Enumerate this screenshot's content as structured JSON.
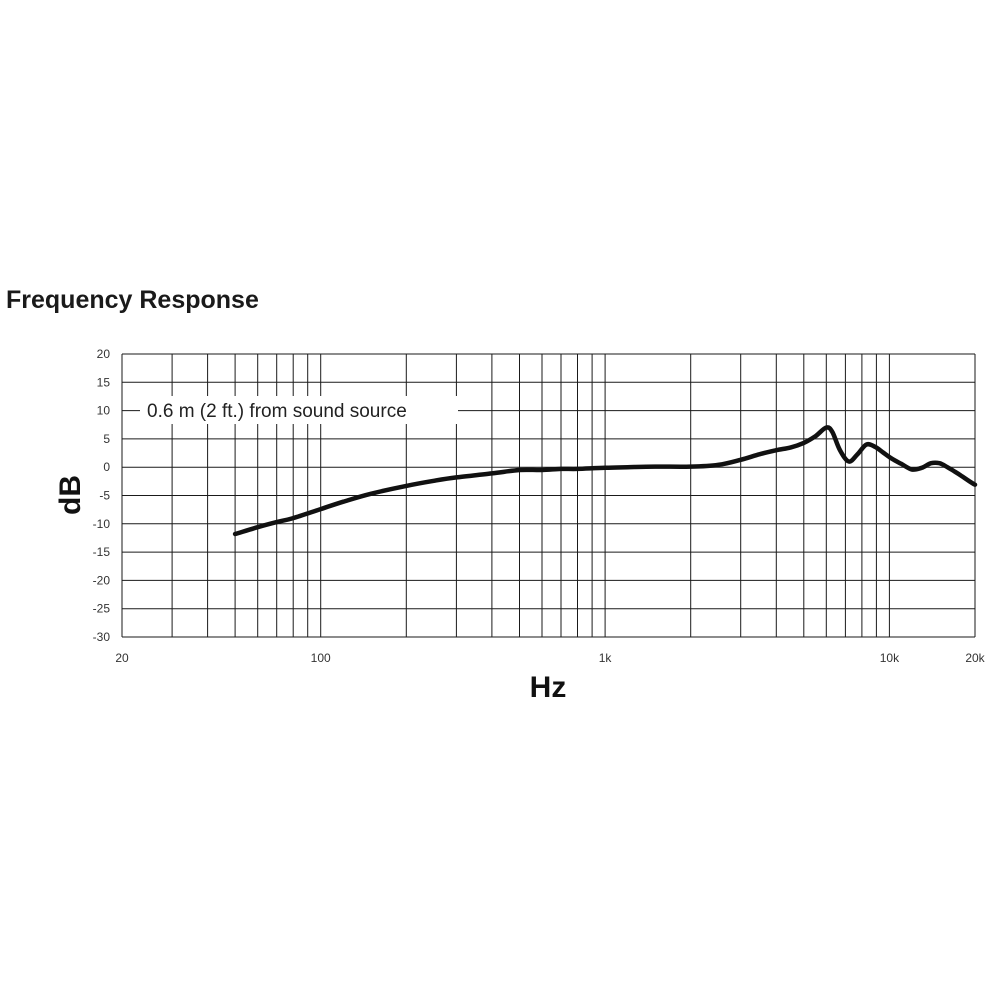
{
  "chart_data": {
    "type": "line",
    "title": "Frequency Response",
    "xlabel": "Hz",
    "ylabel": "dB",
    "xscale": "log",
    "xlim": [
      20,
      20000
    ],
    "ylim": [
      -30,
      20
    ],
    "grid": true,
    "annotation": "0.6 m (2 ft.) from sound source",
    "x_tick_labels": [
      {
        "value": 20,
        "label": "20"
      },
      {
        "value": 100,
        "label": "100"
      },
      {
        "value": 1000,
        "label": "1k"
      },
      {
        "value": 10000,
        "label": "10k"
      },
      {
        "value": 20000,
        "label": "20k"
      }
    ],
    "y_ticks": [
      20,
      15,
      10,
      5,
      0,
      -5,
      -10,
      -15,
      -20,
      -25,
      -30
    ],
    "x_gridlines": [
      20,
      30,
      40,
      50,
      60,
      70,
      80,
      90,
      100,
      200,
      300,
      400,
      500,
      600,
      700,
      800,
      900,
      1000,
      2000,
      3000,
      4000,
      5000,
      6000,
      7000,
      8000,
      9000,
      10000,
      20000
    ],
    "series": [
      {
        "color": "#111111",
        "x": [
          50,
          60,
          70,
          80,
          100,
          120,
          150,
          200,
          250,
          300,
          400,
          500,
          600,
          700,
          800,
          1000,
          1200,
          1500,
          2000,
          2500,
          3000,
          3500,
          4000,
          4500,
          5000,
          5500,
          6000,
          6300,
          6700,
          7200,
          7700,
          8300,
          8900,
          9500,
          10200,
          11000,
          12000,
          13000,
          14000,
          15000,
          16000,
          17000,
          18000,
          19000,
          20000
        ],
        "y": [
          -11.8,
          -10.6,
          -9.7,
          -9.0,
          -7.4,
          -6.1,
          -4.7,
          -3.3,
          -2.4,
          -1.8,
          -1.1,
          -0.5,
          -0.5,
          -0.3,
          -0.3,
          -0.1,
          0.0,
          0.1,
          0.1,
          0.4,
          1.3,
          2.3,
          3.0,
          3.5,
          4.3,
          5.5,
          7.0,
          6.2,
          3.0,
          1.0,
          2.2,
          4.0,
          3.6,
          2.6,
          1.5,
          0.6,
          -0.4,
          -0.1,
          0.7,
          0.7,
          0.0,
          -0.8,
          -1.6,
          -2.4,
          -3.1
        ]
      }
    ]
  }
}
